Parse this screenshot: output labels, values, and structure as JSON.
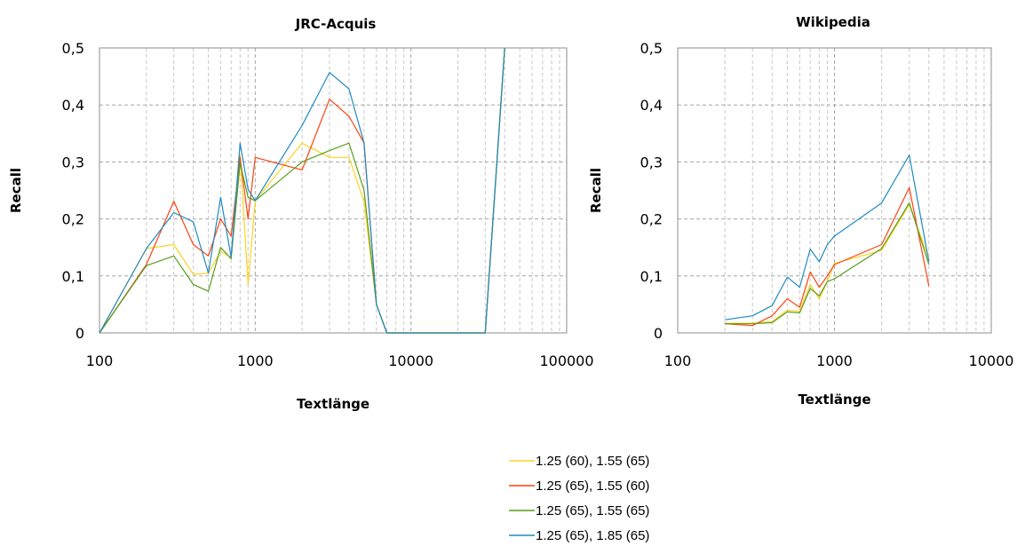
{
  "colors": {
    "series": [
      "#FFD320",
      "#FF420E",
      "#579D1C",
      "#1E8BC3"
    ]
  },
  "legend": {
    "placement": "bottom-center",
    "items": [
      "1.25 (60), 1.55 (65)",
      "1.25 (65), 1.55 (60)",
      "1.25 (65), 1.55 (65)",
      "1.25 (65), 1.85 (65)"
    ]
  },
  "chart_data": [
    {
      "type": "line",
      "title": "JRC-Acquis",
      "xlabel": "Textlänge",
      "ylabel": "Recall",
      "xscale": "log",
      "xlim": [
        100,
        100000
      ],
      "ylim": [
        0,
        0.5
      ],
      "grid": true,
      "x_ticks": [
        100,
        1000,
        10000,
        100000
      ],
      "x_tick_labels": [
        "100",
        "1000",
        "10000",
        "100000"
      ],
      "y_ticks": [
        0,
        0.1,
        0.2,
        0.3,
        0.4,
        0.5
      ],
      "y_tick_labels": [
        "0",
        "0,1",
        "0,2",
        "0,3",
        "0,4",
        "0,5"
      ],
      "series": [
        {
          "x": [
            100,
            200,
            300,
            400,
            500,
            600,
            700,
            800,
            900,
            1000,
            2000,
            3000,
            4000,
            5000,
            6000,
            7000,
            30000,
            40000
          ],
          "values": [
            0,
            0.148,
            0.155,
            0.103,
            0.105,
            0.143,
            0.133,
            0.313,
            0.085,
            0.232,
            0.333,
            0.308,
            0.308,
            0.23,
            0.05,
            0,
            0,
            0.5
          ]
        },
        {
          "x": [
            100,
            200,
            300,
            400,
            500,
            600,
            700,
            800,
            900,
            1000,
            2000,
            3000,
            4000,
            5000,
            6000,
            7000,
            30000,
            40000
          ],
          "values": [
            0,
            0.12,
            0.231,
            0.155,
            0.135,
            0.2,
            0.17,
            0.308,
            0.2,
            0.308,
            0.286,
            0.41,
            0.38,
            0.333,
            0.05,
            0,
            0,
            0.5
          ]
        },
        {
          "x": [
            100,
            200,
            300,
            400,
            500,
            600,
            700,
            800,
            900,
            1000,
            2000,
            3000,
            4000,
            5000,
            6000,
            7000,
            30000,
            40000
          ],
          "values": [
            0,
            0.118,
            0.135,
            0.085,
            0.073,
            0.15,
            0.13,
            0.298,
            0.238,
            0.232,
            0.3,
            0.32,
            0.333,
            0.25,
            0.05,
            0,
            0,
            0.5
          ]
        },
        {
          "x": [
            100,
            200,
            300,
            400,
            500,
            600,
            700,
            800,
            900,
            1000,
            2000,
            3000,
            4000,
            5000,
            6000,
            7000,
            30000,
            40000
          ],
          "values": [
            0,
            0.148,
            0.211,
            0.195,
            0.105,
            0.238,
            0.133,
            0.333,
            0.252,
            0.232,
            0.364,
            0.457,
            0.428,
            0.333,
            0.05,
            0,
            0,
            0.5
          ]
        }
      ]
    },
    {
      "type": "line",
      "title": "Wikipedia",
      "xlabel": "Textlänge",
      "ylabel": "Recall",
      "xscale": "log",
      "xlim": [
        100,
        10000
      ],
      "ylim": [
        0,
        0.5
      ],
      "grid": true,
      "x_ticks": [
        100,
        1000,
        10000
      ],
      "x_tick_labels": [
        "100",
        "1000",
        "10000"
      ],
      "y_ticks": [
        0,
        0.1,
        0.2,
        0.3,
        0.4,
        0.5
      ],
      "y_tick_labels": [
        "0",
        "0,1",
        "0,2",
        "0,3",
        "0,4",
        "0,5"
      ],
      "series": [
        {
          "x": [
            200,
            300,
            400,
            500,
            600,
            700,
            800,
            900,
            1000,
            2000,
            3000,
            4000
          ],
          "values": [
            0.017,
            0.017,
            0.02,
            0.04,
            0.038,
            0.085,
            0.06,
            0.09,
            0.122,
            0.145,
            0.225,
            0.13
          ]
        },
        {
          "x": [
            200,
            300,
            400,
            500,
            600,
            700,
            800,
            900,
            1000,
            2000,
            3000,
            4000
          ],
          "values": [
            0.016,
            0.013,
            0.03,
            0.06,
            0.045,
            0.107,
            0.08,
            0.1,
            0.12,
            0.155,
            0.255,
            0.082
          ]
        },
        {
          "x": [
            200,
            300,
            400,
            500,
            600,
            700,
            800,
            900,
            1000,
            2000,
            3000,
            4000
          ],
          "values": [
            0.016,
            0.016,
            0.018,
            0.037,
            0.035,
            0.078,
            0.065,
            0.09,
            0.095,
            0.148,
            0.228,
            0.12
          ]
        },
        {
          "x": [
            200,
            300,
            400,
            500,
            600,
            700,
            800,
            900,
            1000,
            2000,
            3000,
            4000
          ],
          "values": [
            0.023,
            0.03,
            0.048,
            0.098,
            0.08,
            0.147,
            0.125,
            0.155,
            0.17,
            0.228,
            0.312,
            0.125
          ]
        }
      ]
    }
  ]
}
